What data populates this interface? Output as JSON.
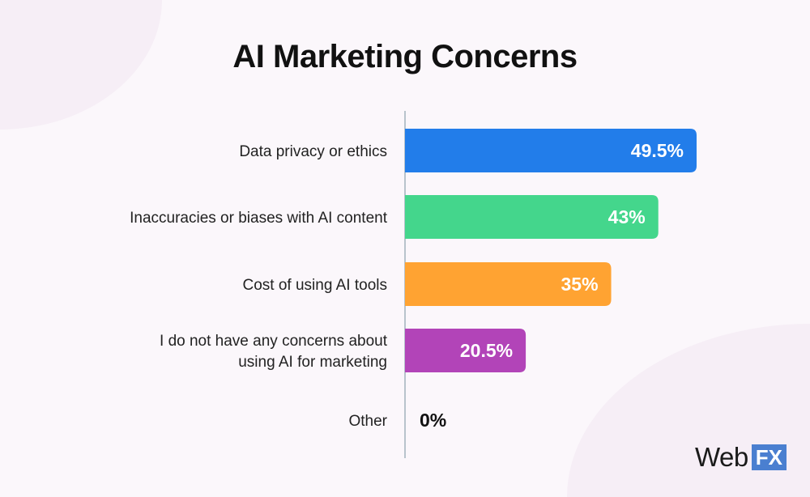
{
  "chart_data": {
    "type": "bar",
    "orientation": "horizontal",
    "title": "AI Marketing Concerns",
    "categories": [
      [
        "Data privacy or ethics"
      ],
      [
        "Inaccuracies or biases with AI content"
      ],
      [
        "Cost of using AI tools"
      ],
      [
        "I do not have any concerns about",
        "using AI for marketing"
      ],
      [
        "Other"
      ]
    ],
    "values": [
      49.5,
      43,
      35,
      20.5,
      0
    ],
    "value_labels": [
      "49.5%",
      "43%",
      "35%",
      "20.5%",
      "0%"
    ],
    "colors": [
      "#227dea",
      "#44d68c",
      "#ffa332",
      "#b244b8",
      "#cccccc"
    ],
    "xlim": [
      0,
      70
    ],
    "grid": false
  },
  "logo": {
    "text": "WebFX",
    "part1": "Web",
    "part2": "FX",
    "color": "#4a7fd0"
  }
}
